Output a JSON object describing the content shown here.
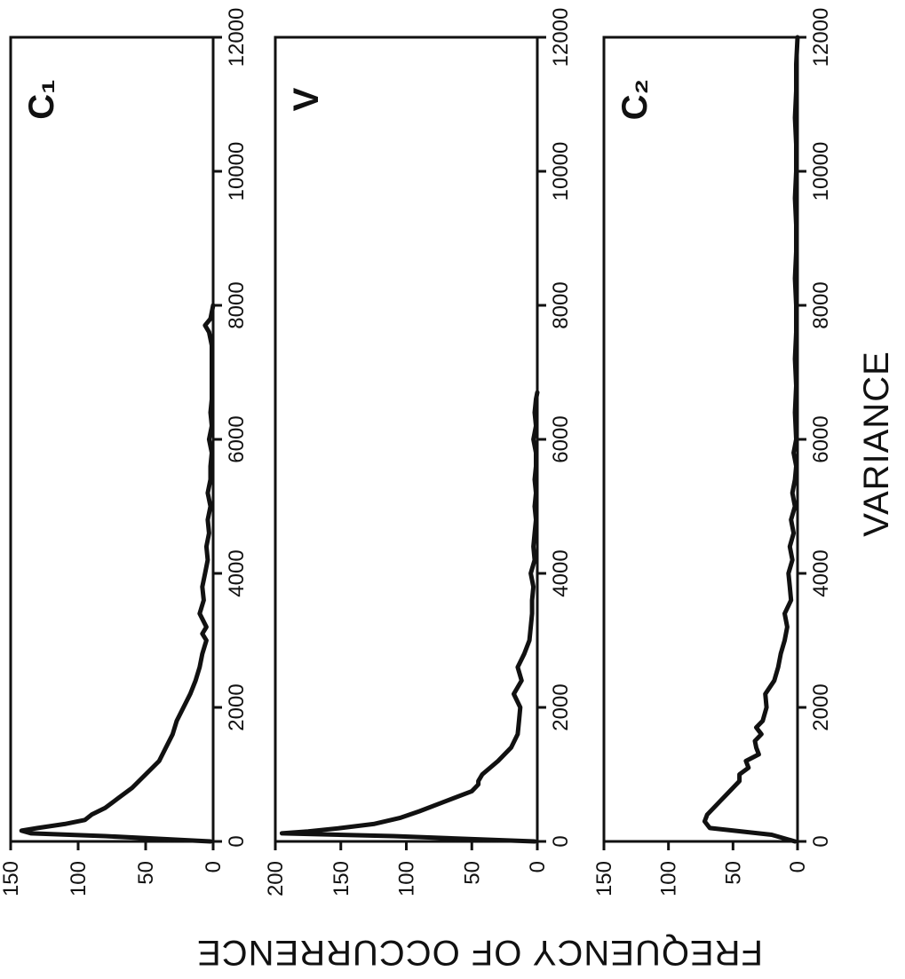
{
  "chart_data": [
    {
      "type": "line",
      "title": "C₁",
      "xlabel": "VARIANCE",
      "ylabel": "FREQUENCY OF OCCURRENCE",
      "xlim": [
        0,
        12000
      ],
      "ylim": [
        0,
        150
      ],
      "x_ticks": [
        "0",
        "2000",
        "4000",
        "6000",
        "8000",
        "10000",
        "12000"
      ],
      "y_ticks": [
        "0",
        "50",
        "100",
        "150"
      ],
      "series": [
        {
          "x": [
            0,
            80,
            120,
            160,
            200,
            260,
            320,
            400,
            500,
            650,
            800,
            1000,
            1200,
            1400,
            1600,
            1800,
            2000,
            2200,
            2400,
            2600,
            2800,
            3000,
            3100,
            3200,
            3400,
            3600,
            3800,
            4000,
            4200,
            4400,
            4600,
            4800,
            5000,
            5200,
            5400,
            5600,
            5800,
            6000,
            6200,
            6400,
            6600,
            6800,
            7000,
            7200,
            7400,
            7600,
            7700,
            7800,
            8000
          ],
          "y": [
            2,
            80,
            135,
            142,
            130,
            110,
            95,
            90,
            80,
            70,
            60,
            50,
            40,
            35,
            30,
            27,
            22,
            17,
            13,
            10,
            8,
            5,
            8,
            5,
            10,
            7,
            8,
            6,
            4,
            5,
            3,
            4,
            2,
            4,
            2,
            2,
            1,
            3,
            1,
            2,
            1,
            1,
            1,
            1,
            1,
            3,
            6,
            2,
            0
          ]
        }
      ]
    },
    {
      "type": "line",
      "title": "V",
      "xlabel": "VARIANCE",
      "ylabel": "FREQUENCY OF OCCURRENCE",
      "xlim": [
        0,
        12000
      ],
      "ylim": [
        0,
        200
      ],
      "x_ticks": [
        "0",
        "2000",
        "4000",
        "6000",
        "8000",
        "10000",
        "12000"
      ],
      "y_ticks": [
        "0",
        "50",
        "100",
        "150",
        "200"
      ],
      "series": [
        {
          "x": [
            0,
            80,
            120,
            150,
            200,
            260,
            350,
            450,
            600,
            750,
            850,
            900,
            1000,
            1200,
            1400,
            1600,
            1800,
            2000,
            2200,
            2400,
            2600,
            2800,
            3000,
            3200,
            3400,
            3600,
            3800,
            4000,
            4200,
            4400,
            4600,
            4800,
            5000,
            5200,
            5400,
            5600,
            5800,
            6000,
            6200,
            6400,
            6600,
            6700
          ],
          "y": [
            2,
            110,
            195,
            175,
            150,
            125,
            105,
            90,
            70,
            50,
            45,
            45,
            42,
            30,
            20,
            15,
            14,
            13,
            18,
            12,
            15,
            10,
            6,
            5,
            4,
            4,
            3,
            5,
            2,
            3,
            2,
            1,
            2,
            1,
            2,
            1,
            1,
            3,
            1,
            2,
            1,
            0
          ]
        }
      ]
    },
    {
      "type": "line",
      "title": "C₂",
      "xlabel": "VARIANCE",
      "ylabel": "FREQUENCY OF OCCURRENCE",
      "xlim": [
        0,
        12000
      ],
      "ylim": [
        0,
        150
      ],
      "x_ticks": [
        "0",
        "2000",
        "4000",
        "6000",
        "8000",
        "10000",
        "12000"
      ],
      "y_ticks": [
        "0",
        "50",
        "100",
        "150"
      ],
      "series": [
        {
          "x": [
            0,
            100,
            200,
            300,
            400,
            500,
            600,
            700,
            800,
            900,
            1000,
            1100,
            1200,
            1300,
            1400,
            1500,
            1600,
            1700,
            1800,
            2000,
            2200,
            2400,
            2600,
            2800,
            3000,
            3200,
            3400,
            3600,
            3800,
            4000,
            4200,
            4400,
            4600,
            4800,
            5000,
            5200,
            5400,
            5600,
            5800,
            6000,
            6400,
            6800,
            7200,
            7600,
            8000,
            8400,
            8800,
            9200,
            9600,
            10000,
            10400,
            10800,
            11200,
            11600,
            12000
          ],
          "y": [
            2,
            20,
            68,
            72,
            70,
            65,
            60,
            55,
            50,
            45,
            45,
            38,
            40,
            30,
            32,
            33,
            28,
            32,
            27,
            24,
            25,
            18,
            15,
            13,
            10,
            8,
            10,
            5,
            6,
            7,
            4,
            6,
            3,
            5,
            2,
            4,
            2,
            1,
            3,
            1,
            2,
            1,
            2,
            1,
            1,
            2,
            1,
            1,
            2,
            1,
            1,
            2,
            1,
            1,
            0
          ]
        }
      ]
    }
  ],
  "figure": {
    "panel_labels": [
      "C₁",
      "V",
      "C₂"
    ],
    "xlabel": "VARIANCE",
    "ylabel": "FREQUENCY OF OCCURRENCE",
    "line_color": "#111111",
    "background": "#ffffff"
  }
}
